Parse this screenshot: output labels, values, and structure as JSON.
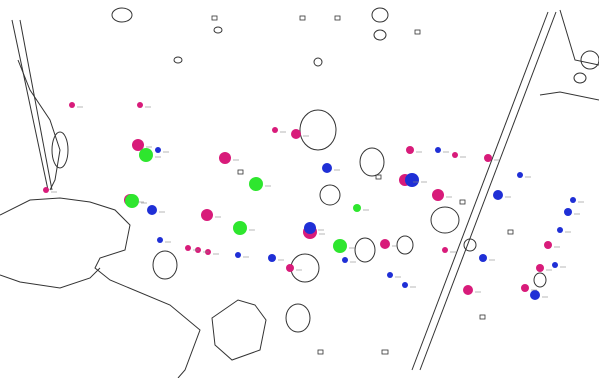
{
  "map": {
    "colors": {
      "background": "#ffffff",
      "outline": "#333333",
      "magenta": "#d81b7a",
      "blue": "#1f2fd6",
      "green": "#2ee62e"
    },
    "labels_legible": false
  }
}
